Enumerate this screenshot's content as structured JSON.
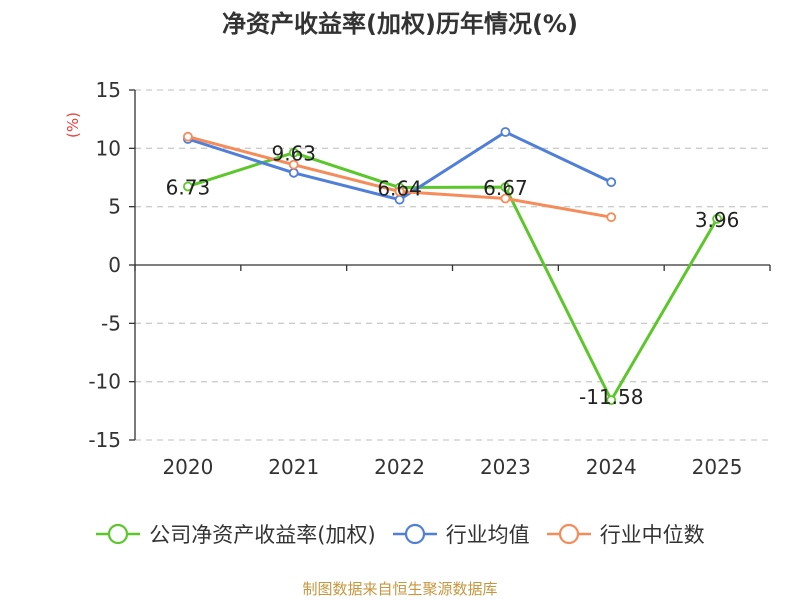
{
  "chart_data": {
    "type": "line",
    "title": "净资产收益率(加权)历年情况(%)",
    "ylabel": "(%)",
    "categories": [
      "2020",
      "2021",
      "2022",
      "2023",
      "2024",
      "2025"
    ],
    "ylim": [
      -15,
      15
    ],
    "yticks": [
      15,
      10,
      5,
      0,
      -5,
      -10,
      -15
    ],
    "grid": true,
    "legend_position": "bottom",
    "series": [
      {
        "name": "公司净资产收益率(加权)",
        "color": "#5cc72b",
        "values": [
          6.73,
          9.63,
          6.64,
          6.67,
          -11.58,
          3.96
        ],
        "data_labels": [
          "6.73",
          "9.63",
          "6.64",
          "6.67",
          "-11.58",
          "3.96"
        ]
      },
      {
        "name": "行业均值",
        "color": "#4f7fd9",
        "values": [
          10.8,
          7.9,
          5.6,
          11.4,
          7.1,
          null
        ]
      },
      {
        "name": "行业中位数",
        "color": "#f58c5a",
        "values": [
          11.0,
          8.6,
          6.3,
          5.7,
          4.1,
          null
        ]
      }
    ]
  },
  "source": "制图数据来自恒生聚源数据库"
}
